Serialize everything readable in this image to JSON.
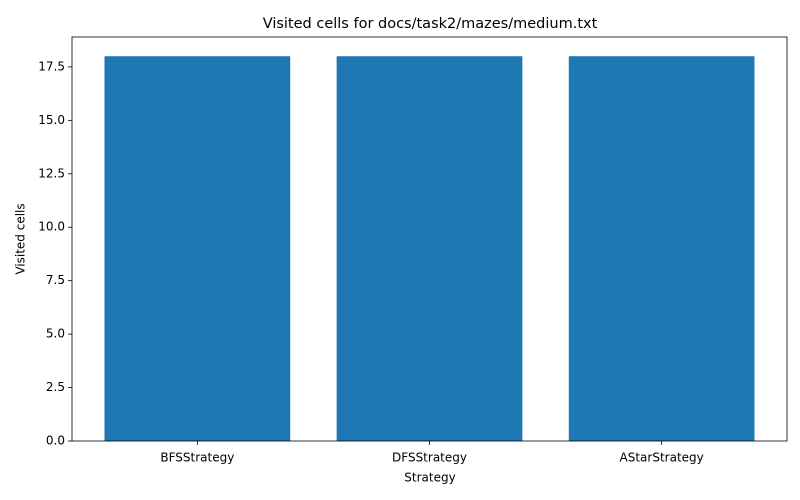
{
  "chart_data": {
    "type": "bar",
    "title": "Visited cells for docs/task2/mazes/medium.txt",
    "x_label": "Strategy",
    "y_label": "Visited cells",
    "categories": [
      "BFSStrategy",
      "DFSStrategy",
      "AStarStrategy"
    ],
    "values": [
      18,
      18,
      18
    ],
    "color": "#1f77b4",
    "ylim": [
      0,
      18.9
    ],
    "yticks": [
      {
        "value": 0,
        "label": "0.0"
      },
      2.5,
      {
        "value": 5,
        "label": "5.0"
      },
      7.5,
      {
        "value": 10,
        "label": "10.0"
      },
      12.5,
      {
        "value": 15,
        "label": "15.0"
      },
      17.5
    ],
    "grid": false
  }
}
